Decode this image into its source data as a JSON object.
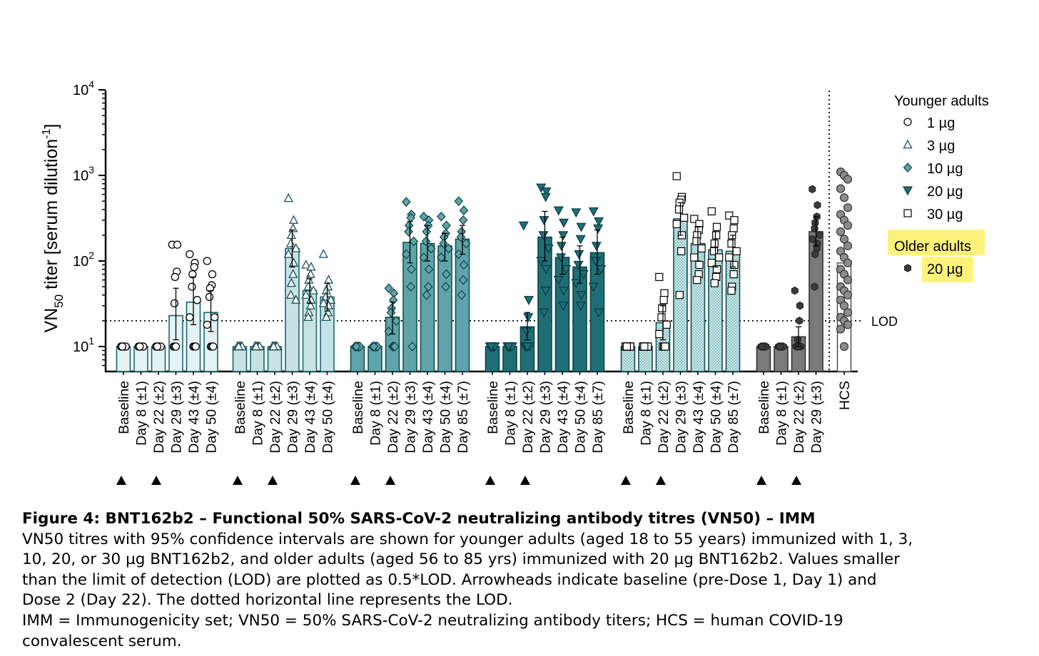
{
  "chart_data": {
    "type": "bar",
    "yscale": "log",
    "ylim": [
      5,
      10000
    ],
    "ylabel_main": "VN",
    "ylabel_sub": "50",
    "ylabel_rest": " titer [serum dilution",
    "ylabel_sup": "-1",
    "ylabel_end": "]",
    "yticks": [
      {
        "base": "10",
        "exp": "1",
        "value": 10
      },
      {
        "base": "10",
        "exp": "2",
        "value": 100
      },
      {
        "base": "10",
        "exp": "3",
        "value": 1000
      },
      {
        "base": "10",
        "exp": "4",
        "value": 10000
      }
    ],
    "lod": {
      "value": 20,
      "label": "LOD"
    },
    "legend": {
      "younger_title": "Younger adults",
      "younger": [
        {
          "label": "1 µg",
          "marker": "circle-open"
        },
        {
          "label": "3 µg",
          "marker": "triangle-open"
        },
        {
          "label": "10 µg",
          "marker": "diamond-filled"
        },
        {
          "label": "20 µg",
          "marker": "triangle-down-filled"
        },
        {
          "label": "30 µg",
          "marker": "square-open"
        }
      ],
      "older_title": "Older adults",
      "older": [
        {
          "label": "20 µg",
          "marker": "hexagon-filled"
        }
      ]
    },
    "groups": [
      {
        "name": "Younger adults 1 µg",
        "fill": "#e3f2f2",
        "stroke": "#1a6670",
        "pattern": "none",
        "marker": "circle-open",
        "categories": [
          "Baseline",
          "Day 8 (±1)",
          "Day 22 (±2)",
          "Day 29 (±3)",
          "Day 43 (±4)",
          "Day 50 (±4)"
        ],
        "values": [
          10,
          10,
          10,
          23,
          33,
          25
        ],
        "ci_low": [
          10,
          10,
          10,
          12,
          18,
          15
        ],
        "ci_high": [
          10,
          10,
          10,
          48,
          65,
          45
        ],
        "arrowheads": [
          0,
          2
        ],
        "points": [
          [
            10,
            10,
            10,
            10,
            10,
            10,
            10,
            10,
            10,
            10,
            10,
            10
          ],
          [
            10,
            10,
            10,
            10,
            10,
            10,
            10,
            10,
            10,
            10,
            10,
            10
          ],
          [
            10,
            10,
            10,
            10,
            10,
            10,
            10,
            10,
            10,
            10,
            10,
            10
          ],
          [
            155,
            155,
            75,
            65,
            32,
            10,
            10,
            10
          ],
          [
            120,
            95,
            85,
            70,
            50,
            35,
            22,
            10,
            10,
            10
          ],
          [
            100,
            70,
            52,
            48,
            38,
            22,
            18,
            10,
            10,
            10
          ]
        ]
      },
      {
        "name": "Younger adults 3 µg",
        "fill": "#c6e2e4",
        "stroke": "#1a6670",
        "pattern": "none",
        "marker": "triangle-open",
        "categories": [
          "Baseline",
          "Day 8 (±1)",
          "Day 22 (±2)",
          "Day 29 (±3)",
          "Day 43 (±4)",
          "Day 50 (±4)"
        ],
        "values": [
          10,
          10,
          10,
          140,
          45,
          38
        ],
        "ci_low": [
          10,
          10,
          10,
          85,
          32,
          26
        ],
        "ci_high": [
          10,
          10,
          10,
          230,
          62,
          55
        ],
        "arrowheads": [
          0,
          2
        ],
        "points": [
          [
            10,
            10,
            10,
            10,
            10,
            10,
            10,
            10,
            10,
            10,
            10,
            10
          ],
          [
            10,
            10,
            10,
            10,
            10,
            10,
            10,
            10,
            10,
            10,
            10,
            10
          ],
          [
            10,
            10,
            10,
            10,
            10,
            10,
            10,
            10,
            10,
            10,
            10,
            10
          ],
          [
            540,
            300,
            240,
            200,
            160,
            140,
            120,
            95,
            70,
            55,
            40,
            35
          ],
          [
            90,
            85,
            70,
            60,
            50,
            45,
            40,
            35,
            30,
            25,
            22
          ],
          [
            120,
            60,
            50,
            45,
            38,
            35,
            32,
            30,
            25,
            22
          ]
        ]
      },
      {
        "name": "Younger adults 10 µg",
        "fill": "#5ea4a9",
        "stroke": "#124f55",
        "pattern": "none",
        "marker": "diamond-filled",
        "categories": [
          "Baseline",
          "Day 8 (±1)",
          "Day 22 (±2)",
          "Day 29 (±3)",
          "Day 43 (±4)",
          "Day 50 (±4)",
          "Day 85 (±7)"
        ],
        "values": [
          10,
          10,
          22,
          165,
          160,
          150,
          180
        ],
        "ci_low": [
          10,
          10,
          14,
          95,
          100,
          100,
          120
        ],
        "ci_high": [
          10,
          10,
          33,
          290,
          260,
          210,
          260
        ],
        "arrowheads": [
          0,
          2
        ],
        "points": [
          [
            10,
            10,
            10,
            10,
            10,
            10,
            10,
            10,
            10,
            10,
            10,
            10
          ],
          [
            10,
            10,
            10,
            10,
            10,
            10,
            10,
            10,
            10,
            10,
            10,
            10
          ],
          [
            48,
            42,
            35,
            28,
            25,
            20,
            15,
            10,
            10,
            10
          ],
          [
            490,
            350,
            320,
            260,
            220,
            170,
            120,
            80,
            50,
            10
          ],
          [
            330,
            300,
            260,
            220,
            170,
            140,
            110,
            80,
            50,
            40
          ],
          [
            330,
            260,
            210,
            190,
            160,
            140,
            110,
            70,
            50
          ],
          [
            500,
            390,
            300,
            220,
            190,
            160,
            120,
            90,
            60,
            40
          ]
        ]
      },
      {
        "name": "Younger adults 20 µg",
        "fill": "#1f6e76",
        "stroke": "#0c4449",
        "pattern": "none",
        "marker": "triangle-down-filled",
        "categories": [
          "Baseline",
          "Day 8 (±1)",
          "Day 22 (±2)",
          "Day 29 (±3)",
          "Day 43 (±4)",
          "Day 50 (±4)",
          "Day 85 (±7)"
        ],
        "values": [
          10,
          10,
          17,
          190,
          110,
          85,
          125
        ],
        "ci_low": [
          10,
          10,
          12,
          100,
          70,
          55,
          70
        ],
        "ci_high": [
          10,
          10,
          25,
          380,
          190,
          150,
          230
        ],
        "arrowheads": [
          0,
          2
        ],
        "points": [
          [
            10,
            10,
            10,
            10,
            10,
            10,
            10,
            10,
            10,
            10,
            10,
            10
          ],
          [
            10,
            10,
            10,
            10,
            10,
            10,
            10,
            10,
            10,
            10,
            10,
            10
          ],
          [
            260,
            35,
            22,
            15,
            10,
            10,
            10,
            10
          ],
          [
            720,
            650,
            560,
            300,
            200,
            140,
            100,
            80,
            45,
            25
          ],
          [
            390,
            280,
            200,
            150,
            110,
            80,
            60,
            45,
            30
          ],
          [
            370,
            250,
            180,
            120,
            90,
            70,
            55,
            40,
            30
          ],
          [
            380,
            290,
            240,
            150,
            100,
            80,
            50,
            25
          ]
        ]
      },
      {
        "name": "Younger adults 30 µg",
        "fill": "#8fc7c9",
        "stroke": "#124f55",
        "pattern": "dots",
        "marker": "square-open",
        "categories": [
          "Baseline",
          "Day 8 (±1)",
          "Day 22 (±2)",
          "Day 29 (±3)",
          "Day 43 (±4)",
          "Day 50 (±4)",
          "Day 85 (±7)"
        ],
        "values": [
          10,
          10,
          19,
          310,
          160,
          135,
          130
        ],
        "ci_low": [
          10,
          10,
          12,
          200,
          100,
          85,
          85
        ],
        "ci_high": [
          10,
          10,
          30,
          480,
          250,
          220,
          200
        ],
        "arrowheads": [
          0,
          2
        ],
        "points": [
          [
            10,
            10,
            10,
            10,
            10,
            10,
            10,
            10,
            10,
            10,
            10,
            10
          ],
          [
            10,
            10,
            10,
            10,
            10,
            10,
            10,
            10,
            10,
            10,
            10,
            10
          ],
          [
            65,
            42,
            35,
            28,
            22,
            18,
            14,
            10,
            10,
            10
          ],
          [
            980,
            560,
            520,
            480,
            400,
            320,
            270,
            200,
            130,
            40
          ],
          [
            310,
            270,
            230,
            200,
            170,
            140,
            110,
            90,
            70,
            60
          ],
          [
            380,
            250,
            200,
            160,
            130,
            110,
            95,
            80,
            65,
            55
          ],
          [
            340,
            300,
            240,
            200,
            160,
            130,
            110,
            90,
            70,
            50,
            45
          ]
        ]
      },
      {
        "name": "Older adults 20 µg",
        "fill": "#7a7a7a",
        "stroke": "#333333",
        "pattern": "none",
        "marker": "hexagon-filled",
        "categories": [
          "Baseline",
          "Day 8 (±1)",
          "Day 22 (±2)",
          "Day 29 (±3)"
        ],
        "values": [
          10,
          10,
          13,
          220
        ],
        "ci_low": [
          10,
          10,
          10,
          150
        ],
        "ci_high": [
          10,
          10,
          17,
          330
        ],
        "arrowheads": [
          0,
          2
        ],
        "points": [
          [
            10,
            10,
            10,
            10,
            10,
            10,
            10,
            10,
            10,
            10,
            10,
            10
          ],
          [
            10,
            10,
            10,
            10,
            10,
            10,
            10,
            10,
            10,
            10,
            10,
            10
          ],
          [
            45,
            30,
            20,
            12,
            10,
            10,
            10,
            10
          ],
          [
            690,
            450,
            330,
            280,
            240,
            200,
            180,
            160,
            140,
            120,
            50
          ]
        ]
      }
    ],
    "hcs": {
      "label": "HCS",
      "value": 95,
      "fill": "#ffffff",
      "stroke": "#555555",
      "points": [
        1100,
        1000,
        900,
        700,
        550,
        420,
        350,
        300,
        260,
        220,
        180,
        150,
        130,
        110,
        95,
        80,
        70,
        60,
        50,
        45,
        40,
        35,
        30,
        25,
        22,
        20,
        18,
        16,
        10
      ]
    }
  },
  "caption": {
    "title": "Figure 4: BNT162b2 – Functional 50% SARS-CoV-2 neutralizing antibody titres (VN50) – IMM",
    "line1": "VN50 titres with 95% confidence intervals are shown for younger adults (aged 18 to 55 years) immunized with 1, 3,",
    "line2": "10, 20, or 30 µg BNT162b2, and older adults (aged 56 to 85 yrs) immunized with 20 µg BNT162b2. Values smaller",
    "line3": "than the limit of detection (LOD) are plotted as 0.5*LOD. Arrowheads indicate baseline (pre-Dose 1, Day 1) and",
    "line4": "Dose 2 (Day 22). The dotted horizontal line represents the LOD.",
    "line5": "IMM = Immunogenicity set; VN50 = 50% SARS-CoV-2 neutralizing antibody titers; HCS = human COVID-19",
    "line6": "convalescent serum."
  },
  "colors": {
    "axis": "#000000",
    "highlight": "#fff27a"
  }
}
